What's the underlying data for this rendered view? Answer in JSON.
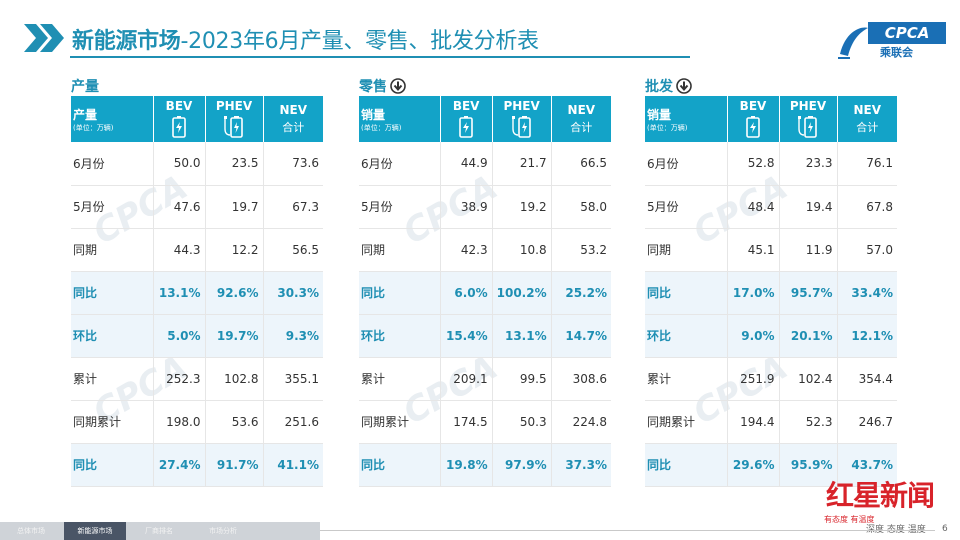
{
  "header": {
    "title_bold": "新能源市场",
    "title_rest": "-2023年6月产量、零售、批发分析表"
  },
  "logo": {
    "word": "CPCA",
    "sub": "乘联会"
  },
  "row_labels": [
    "6月份",
    "5月份",
    "同期",
    "同比",
    "环比",
    "累计",
    "同期累计",
    "同比"
  ],
  "headers": {
    "bev": "BEV",
    "phev": "PHEV",
    "nev": "NEV",
    "nev_sub": "合计",
    "unit": "(单位：万辆)"
  },
  "sections": [
    {
      "title": "产量",
      "corner": "产量",
      "rows": [
        [
          "50.0",
          "23.5",
          "73.6"
        ],
        [
          "47.6",
          "19.7",
          "67.3"
        ],
        [
          "44.3",
          "12.2",
          "56.5"
        ],
        [
          "13.1%",
          "92.6%",
          "30.3%"
        ],
        [
          "5.0%",
          "19.7%",
          "9.3%"
        ],
        [
          "252.3",
          "102.8",
          "355.1"
        ],
        [
          "198.0",
          "53.6",
          "251.6"
        ],
        [
          "27.4%",
          "91.7%",
          "41.1%"
        ]
      ]
    },
    {
      "title": "零售",
      "corner": "销量",
      "rows": [
        [
          "44.9",
          "21.7",
          "66.5"
        ],
        [
          "38.9",
          "19.2",
          "58.0"
        ],
        [
          "42.3",
          "10.8",
          "53.2"
        ],
        [
          "6.0%",
          "100.2%",
          "25.2%"
        ],
        [
          "15.4%",
          "13.1%",
          "14.7%"
        ],
        [
          "209.1",
          "99.5",
          "308.6"
        ],
        [
          "174.5",
          "50.3",
          "224.8"
        ],
        [
          "19.8%",
          "97.9%",
          "37.3%"
        ]
      ]
    },
    {
      "title": "批发",
      "corner": "销量",
      "rows": [
        [
          "52.8",
          "23.3",
          "76.1"
        ],
        [
          "48.4",
          "19.4",
          "67.8"
        ],
        [
          "45.1",
          "11.9",
          "57.0"
        ],
        [
          "17.0%",
          "95.7%",
          "33.4%"
        ],
        [
          "9.0%",
          "20.1%",
          "12.1%"
        ],
        [
          "251.9",
          "102.4",
          "354.4"
        ],
        [
          "194.4",
          "52.3",
          "246.7"
        ],
        [
          "29.6%",
          "95.9%",
          "43.7%"
        ]
      ]
    }
  ],
  "footer": {
    "tabs": [
      "总体市场",
      "新能源市场",
      "厂商排名",
      "市场分析"
    ],
    "page": "6"
  },
  "badge": {
    "name": "红星新闻",
    "slogan": "有态度 有温度",
    "slogan2": "深度 态度 温度"
  },
  "colors": {
    "accent": "#13a3c8",
    "title": "#1f8fb3",
    "highlight_row": "#edf5fb"
  }
}
